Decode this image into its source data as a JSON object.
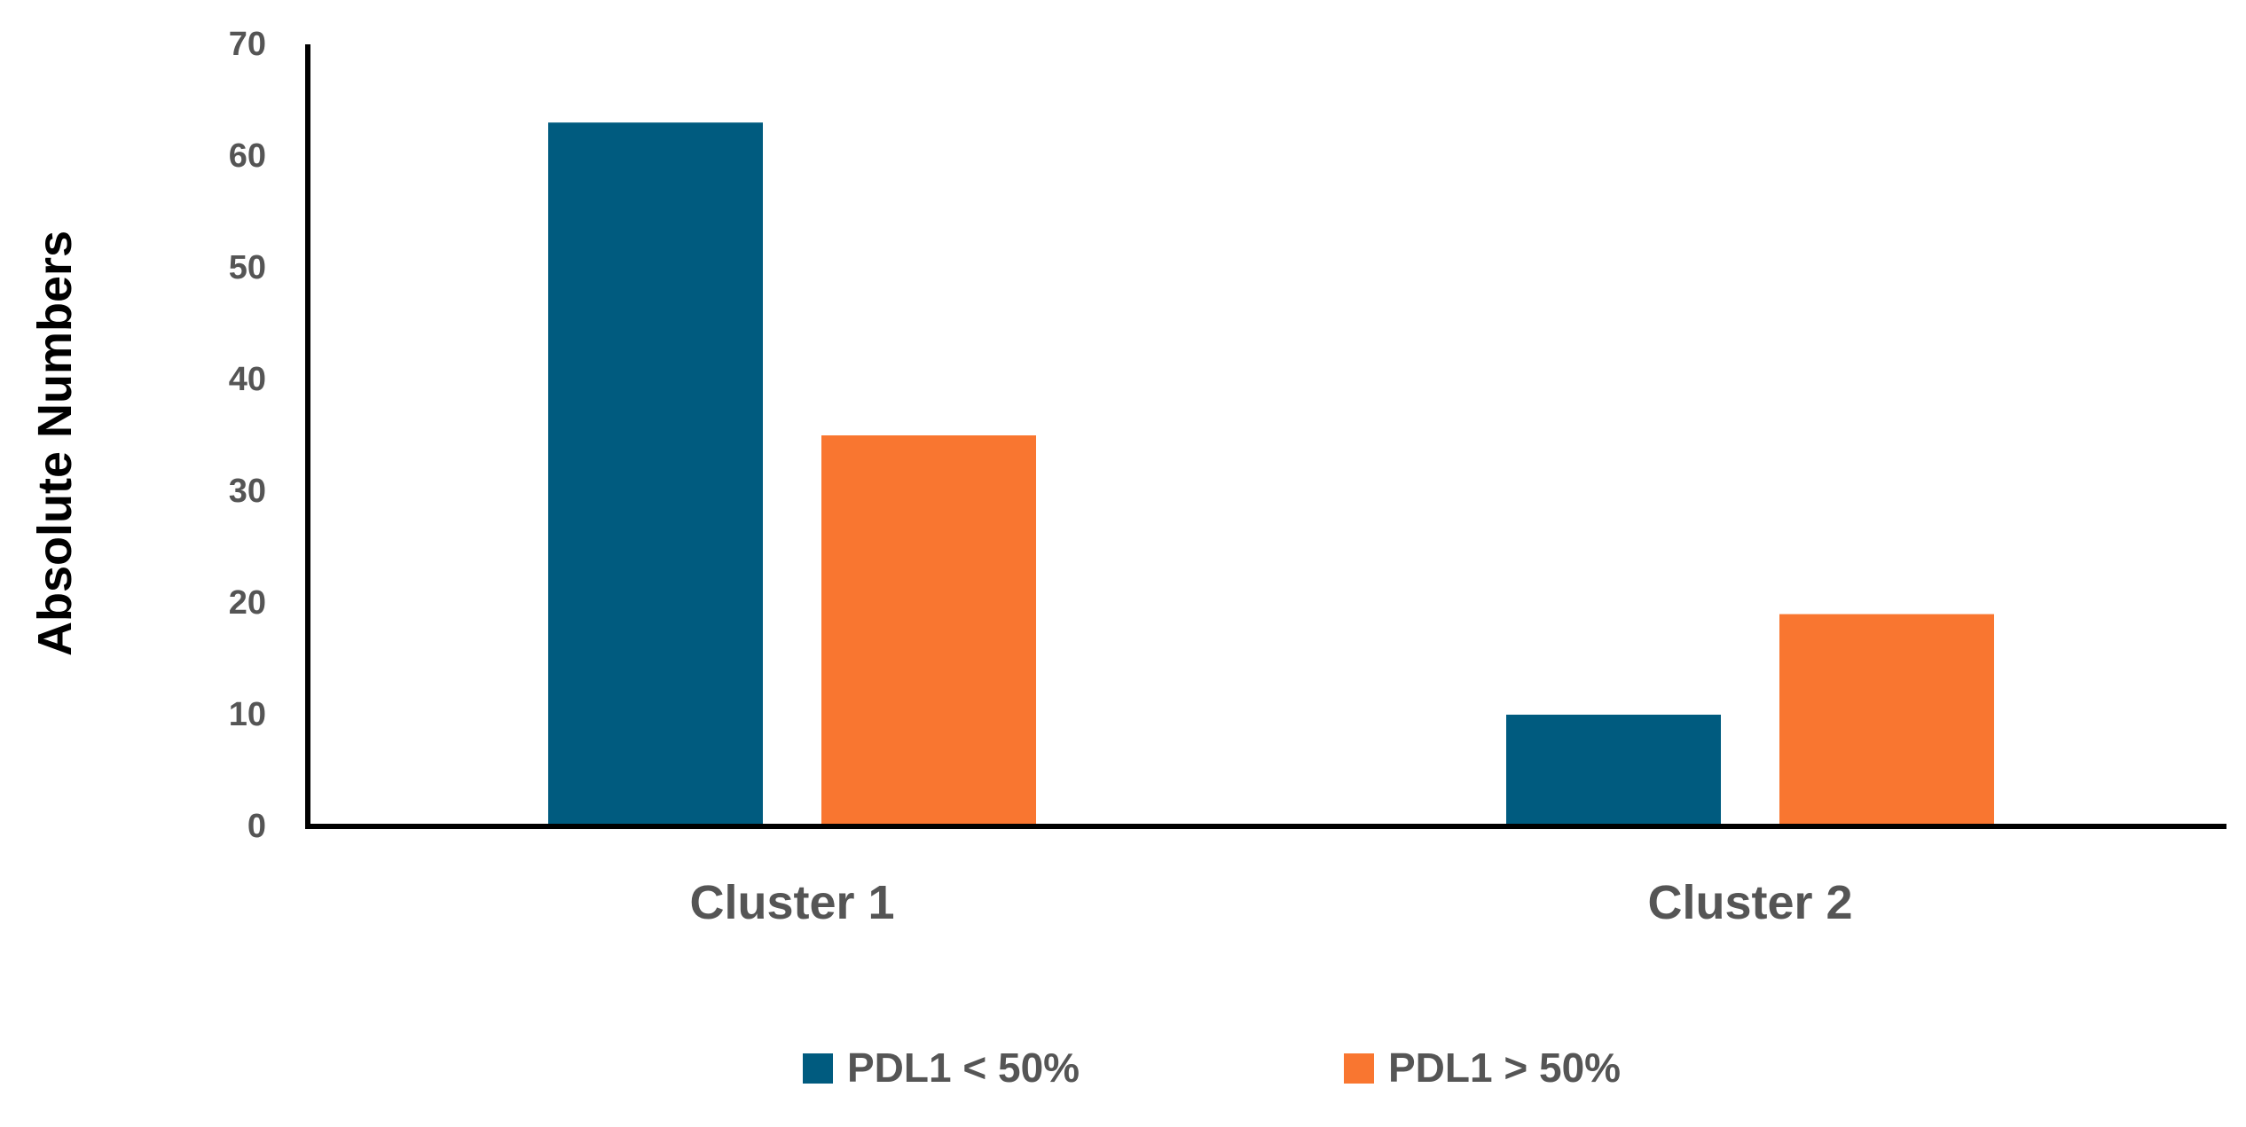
{
  "colors": {
    "series_1": "#005b7f",
    "series_2": "#f97630",
    "axis": "#000000",
    "text": "#555555"
  },
  "chart_data": {
    "type": "bar",
    "title": "",
    "xlabel": "",
    "ylabel": "Absolute Numbers",
    "categories": [
      "Cluster 1",
      "Cluster 2"
    ],
    "series": [
      {
        "name": "PDL1 < 50%",
        "values": [
          63,
          10
        ]
      },
      {
        "name": "PDL1 > 50%",
        "values": [
          35,
          19
        ]
      }
    ],
    "ylim": [
      0,
      70
    ],
    "yticks": [
      0,
      10,
      20,
      30,
      40,
      50,
      60,
      70
    ],
    "grid": false,
    "legend_position": "bottom"
  }
}
